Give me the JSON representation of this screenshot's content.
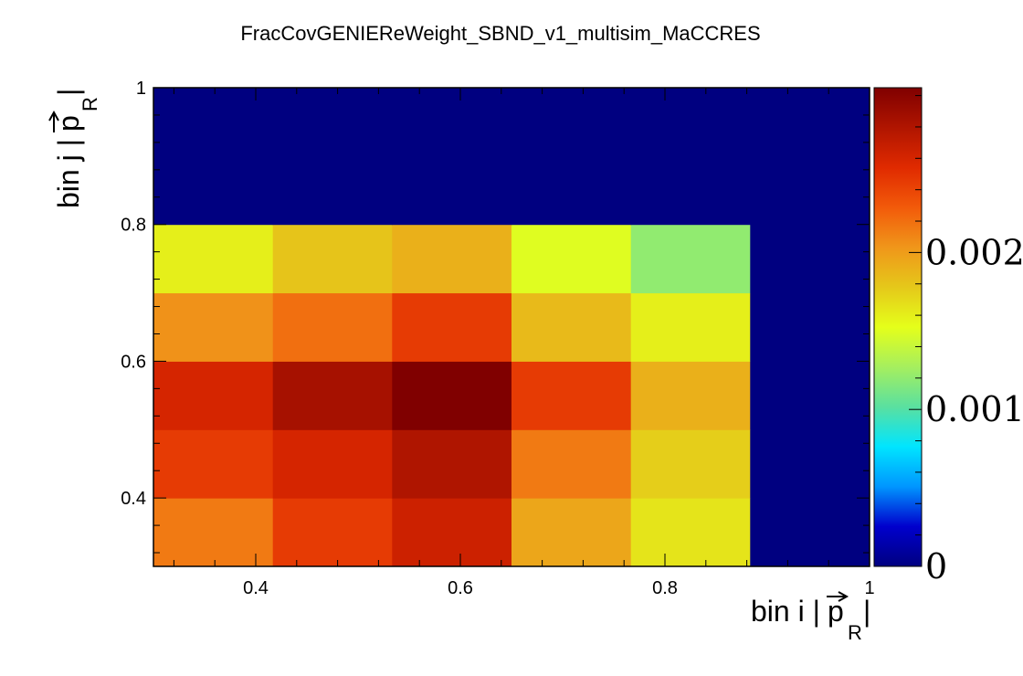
{
  "chart_data": {
    "type": "heatmap",
    "title": "FracCovGENIEReWeight_SBND_v1_multisim_MaCCRES",
    "xlabel": {
      "main": "bin i |",
      "vec": "p",
      "sub": "R",
      "close": "|"
    },
    "ylabel": {
      "main": "bin j |",
      "vec": "p",
      "sub": "R",
      "close": "|"
    },
    "x_edges": [
      0.3,
      0.4167,
      0.5333,
      0.65,
      0.7667,
      0.8833,
      1.0
    ],
    "y_edges": [
      0.3,
      0.4,
      0.5,
      0.6,
      0.7,
      0.8,
      1.0
    ],
    "xlim": [
      0.3,
      1.0
    ],
    "ylim": [
      0.3,
      1.0
    ],
    "x_ticks": [
      0.4,
      0.6,
      0.8,
      1
    ],
    "x_tick_labels": [
      "0.4",
      "0.6",
      "0.8",
      "1"
    ],
    "y_ticks": [
      0.4,
      0.6,
      0.8,
      1
    ],
    "y_tick_labels": [
      "0.4",
      "0.6",
      "0.8",
      "1"
    ],
    "values": [
      [
        0.00215,
        0.00245,
        0.00265,
        0.00195,
        0.00165,
        0.0
      ],
      [
        0.00245,
        0.0026,
        0.0028,
        0.00215,
        0.00175,
        0.0
      ],
      [
        0.0026,
        0.00285,
        0.00305,
        0.00245,
        0.0019,
        0.0
      ],
      [
        0.00205,
        0.0022,
        0.00245,
        0.00185,
        0.0016,
        0.0
      ],
      [
        0.0016,
        0.0018,
        0.0019,
        0.0015,
        0.0012,
        0.0
      ],
      [
        0.0,
        0.0,
        0.0,
        0.0,
        0.0,
        0.0
      ]
    ],
    "zlim": [
      0.0,
      0.00305
    ],
    "colorbar_ticks": [
      0,
      0.001,
      0.002
    ],
    "colorbar_tick_labels": [
      "0",
      "0.001",
      "0.002"
    ],
    "colormap": [
      "#000080",
      "#0000cd",
      "#0096ff",
      "#00e5ff",
      "#5ae0a0",
      "#a6ef5e",
      "#e5ff1a",
      "#e5c81a",
      "#f0961a",
      "#f25a0a",
      "#e02a00",
      "#b01500",
      "#800000"
    ]
  }
}
